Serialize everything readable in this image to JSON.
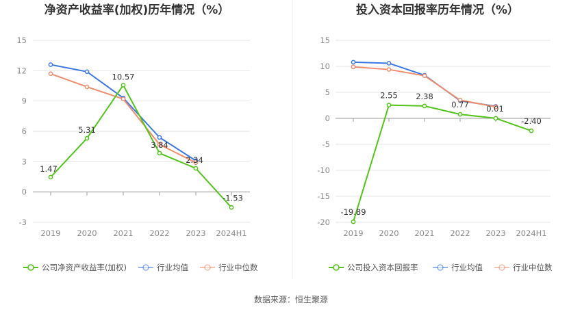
{
  "source_text": "数据来源：恒生聚源",
  "chart_data": [
    {
      "type": "line",
      "title": "净资产收益率(加权)历年情况（%）",
      "categories": [
        "2019",
        "2020",
        "2021",
        "2022",
        "2023",
        "2024H1"
      ],
      "yticks": [
        "15",
        "12",
        "9",
        "6",
        "3",
        "0",
        "-3"
      ],
      "ylim": [
        -3,
        15
      ],
      "grid": true,
      "legend_position": "bottom",
      "series": [
        {
          "name": "公司净资产收益率(加权)",
          "color": "#52c41a",
          "values": [
            1.47,
            5.31,
            10.57,
            3.84,
            2.34,
            -1.53
          ],
          "labels": [
            "1.47",
            "5.31",
            "10.57",
            "3.84",
            "2.34",
            "-1.53"
          ]
        },
        {
          "name": "行业均值",
          "color": "#3b78e7",
          "values": [
            12.6,
            11.9,
            9.3,
            5.4,
            3.1,
            null
          ]
        },
        {
          "name": "行业中位数",
          "color": "#f08c6c",
          "values": [
            11.7,
            10.4,
            9.2,
            4.7,
            2.9,
            null
          ]
        }
      ]
    },
    {
      "type": "line",
      "title": "投入资本回报率历年情况（%）",
      "categories": [
        "2019",
        "2020",
        "2021",
        "2022",
        "2023",
        "2024H1"
      ],
      "yticks": [
        "15",
        "10",
        "5",
        "0",
        "-5",
        "-10",
        "-15",
        "-20"
      ],
      "ylim": [
        -20,
        15
      ],
      "grid": true,
      "legend_position": "bottom",
      "series": [
        {
          "name": "公司投入资本回报率",
          "color": "#52c41a",
          "values": [
            -19.89,
            2.55,
            2.38,
            0.77,
            0.01,
            -2.4
          ],
          "labels": [
            "-19.89",
            "2.55",
            "2.38",
            "0.77",
            "0.01",
            "-2.40"
          ]
        },
        {
          "name": "行业均值",
          "color": "#3b78e7",
          "values": [
            10.8,
            10.6,
            8.3,
            3.4,
            2.3,
            null
          ]
        },
        {
          "name": "行业中位数",
          "color": "#f08c6c",
          "values": [
            9.9,
            9.4,
            8.2,
            3.5,
            2.2,
            null
          ]
        }
      ]
    }
  ]
}
